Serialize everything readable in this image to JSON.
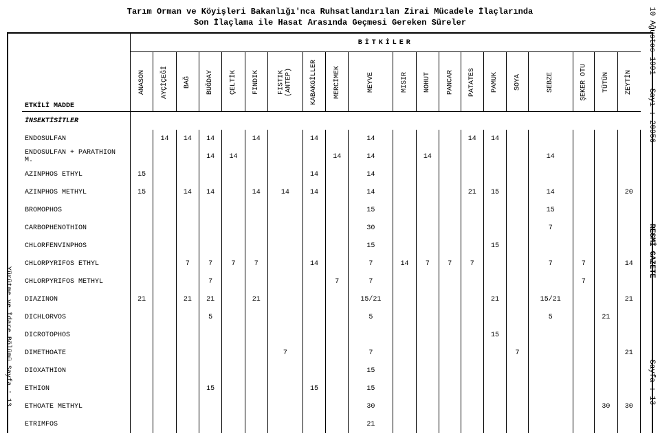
{
  "title": {
    "line1": "Tarım Orman ve Köyişleri Bakanlığı'nca Ruhsatlandırılan Zirai Mücadele İlaçlarında",
    "line2": "Son İlaçlama ile Hasat Arasında Geçmesi Gereken Süreler"
  },
  "margin": {
    "right_top": "10 Ağustos 1991 — Sayı : 20956",
    "right_mid": "RESMİ GAZETE",
    "right_bot": "Sayfa : 13",
    "left": "Yürütme ve İdare Bölümü Sayfa : 13"
  },
  "group_header": "BİTKİLER",
  "first_col_header": "ETKİLİ MADDE",
  "columns": [
    "ANASON",
    "AYÇİÇEĞİ",
    "BAĞ",
    "BUĞDAY",
    "ÇELTİK",
    "FINDIK",
    "FISTIK (ANTEP)",
    "KABAKGİLLER",
    "MERCİMEK",
    "MEYVE",
    "MISIR",
    "NOHUT",
    "PANCAR",
    "PATATES",
    "PAMUK",
    "SOYA",
    "SEBZE",
    "ŞEKER OTU",
    "TÜTÜN",
    "ZEYTİN"
  ],
  "section": "İNSEKTİSİTLER",
  "rows": [
    {
      "name": "ENDOSULFAN",
      "v": [
        "",
        "14",
        "14",
        "14",
        "",
        "14",
        "",
        "14",
        "",
        "14",
        "",
        "",
        "",
        "14",
        "14",
        "",
        "",
        "",
        "",
        ""
      ]
    },
    {
      "name": "ENDOSULFAN + PARATHION M.",
      "v": [
        "",
        "",
        "",
        "14",
        "14",
        "",
        "",
        "",
        "14",
        "14",
        "",
        "14",
        "",
        "",
        "",
        "",
        "14",
        "",
        "",
        ""
      ]
    },
    {
      "name": "AZINPHOS ETHYL",
      "v": [
        "15",
        "",
        "",
        "",
        "",
        "",
        "",
        "14",
        "",
        "14",
        "",
        "",
        "",
        "",
        "",
        "",
        "",
        "",
        "",
        ""
      ]
    },
    {
      "name": "AZINPHOS METHYL",
      "v": [
        "15",
        "",
        "14",
        "14",
        "",
        "14",
        "14",
        "14",
        "",
        "14",
        "",
        "",
        "",
        "21",
        "15",
        "",
        "14",
        "",
        "",
        "20"
      ]
    },
    {
      "name": "BROMOPHOS",
      "v": [
        "",
        "",
        "",
        "",
        "",
        "",
        "",
        "",
        "",
        "15",
        "",
        "",
        "",
        "",
        "",
        "",
        "15",
        "",
        "",
        ""
      ]
    },
    {
      "name": "CARBOPHENOTHION",
      "v": [
        "",
        "",
        "",
        "",
        "",
        "",
        "",
        "",
        "",
        "30",
        "",
        "",
        "",
        "",
        "",
        "",
        "7",
        "",
        "",
        ""
      ]
    },
    {
      "name": "CHLORFENVINPHOS",
      "v": [
        "",
        "",
        "",
        "",
        "",
        "",
        "",
        "",
        "",
        "15",
        "",
        "",
        "",
        "",
        "15",
        "",
        "",
        "",
        "",
        ""
      ]
    },
    {
      "name": "CHLORPYRIFOS ETHYL",
      "v": [
        "",
        "",
        "7",
        "7",
        "7",
        "7",
        "",
        "14",
        "",
        "7",
        "14",
        "7",
        "7",
        "7",
        "",
        "",
        "7",
        "7",
        "",
        "14"
      ]
    },
    {
      "name": "CHLORPYRIFOS METHYL",
      "v": [
        "",
        "",
        "",
        "7",
        "",
        "",
        "",
        "",
        "7",
        "7",
        "",
        "",
        "",
        "",
        "",
        "",
        "",
        "7",
        "",
        ""
      ]
    },
    {
      "name": "DIAZINON",
      "v": [
        "21",
        "",
        "21",
        "21",
        "",
        "21",
        "",
        "",
        "",
        "15/21",
        "",
        "",
        "",
        "",
        "21",
        "",
        "15/21",
        "",
        "",
        "21"
      ]
    },
    {
      "name": "DICHLORVOS",
      "v": [
        "",
        "",
        "",
        "5",
        "",
        "",
        "",
        "",
        "",
        "5",
        "",
        "",
        "",
        "",
        "",
        "",
        "5",
        "",
        "21",
        ""
      ]
    },
    {
      "name": "DICROTOPHOS",
      "v": [
        "",
        "",
        "",
        "",
        "",
        "",
        "",
        "",
        "",
        "",
        "",
        "",
        "",
        "",
        "15",
        "",
        "",
        "",
        "",
        ""
      ]
    },
    {
      "name": "DIMETHOATE",
      "v": [
        "",
        "",
        "",
        "",
        "",
        "",
        "7",
        "",
        "",
        "7",
        "",
        "",
        "",
        "",
        "",
        "7",
        "",
        "",
        "",
        "21"
      ]
    },
    {
      "name": "DIOXATHION",
      "v": [
        "",
        "",
        "",
        "",
        "",
        "",
        "",
        "",
        "",
        "15",
        "",
        "",
        "",
        "",
        "",
        "",
        "",
        "",
        "",
        ""
      ]
    },
    {
      "name": "ETHION",
      "v": [
        "",
        "",
        "",
        "15",
        "",
        "",
        "",
        "15",
        "",
        "15",
        "",
        "",
        "",
        "",
        "",
        "",
        "",
        "",
        "",
        ""
      ]
    },
    {
      "name": "ETHOATE METHYL",
      "v": [
        "",
        "",
        "",
        "",
        "",
        "",
        "",
        "",
        "",
        "30",
        "",
        "",
        "",
        "",
        "",
        "",
        "",
        "",
        "30",
        "30"
      ]
    },
    {
      "name": "ETRIMFOS",
      "v": [
        "",
        "",
        "",
        "",
        "",
        "",
        "",
        "",
        "",
        "21",
        "",
        "",
        "",
        "",
        "",
        "",
        "",
        "",
        "",
        ""
      ]
    }
  ]
}
